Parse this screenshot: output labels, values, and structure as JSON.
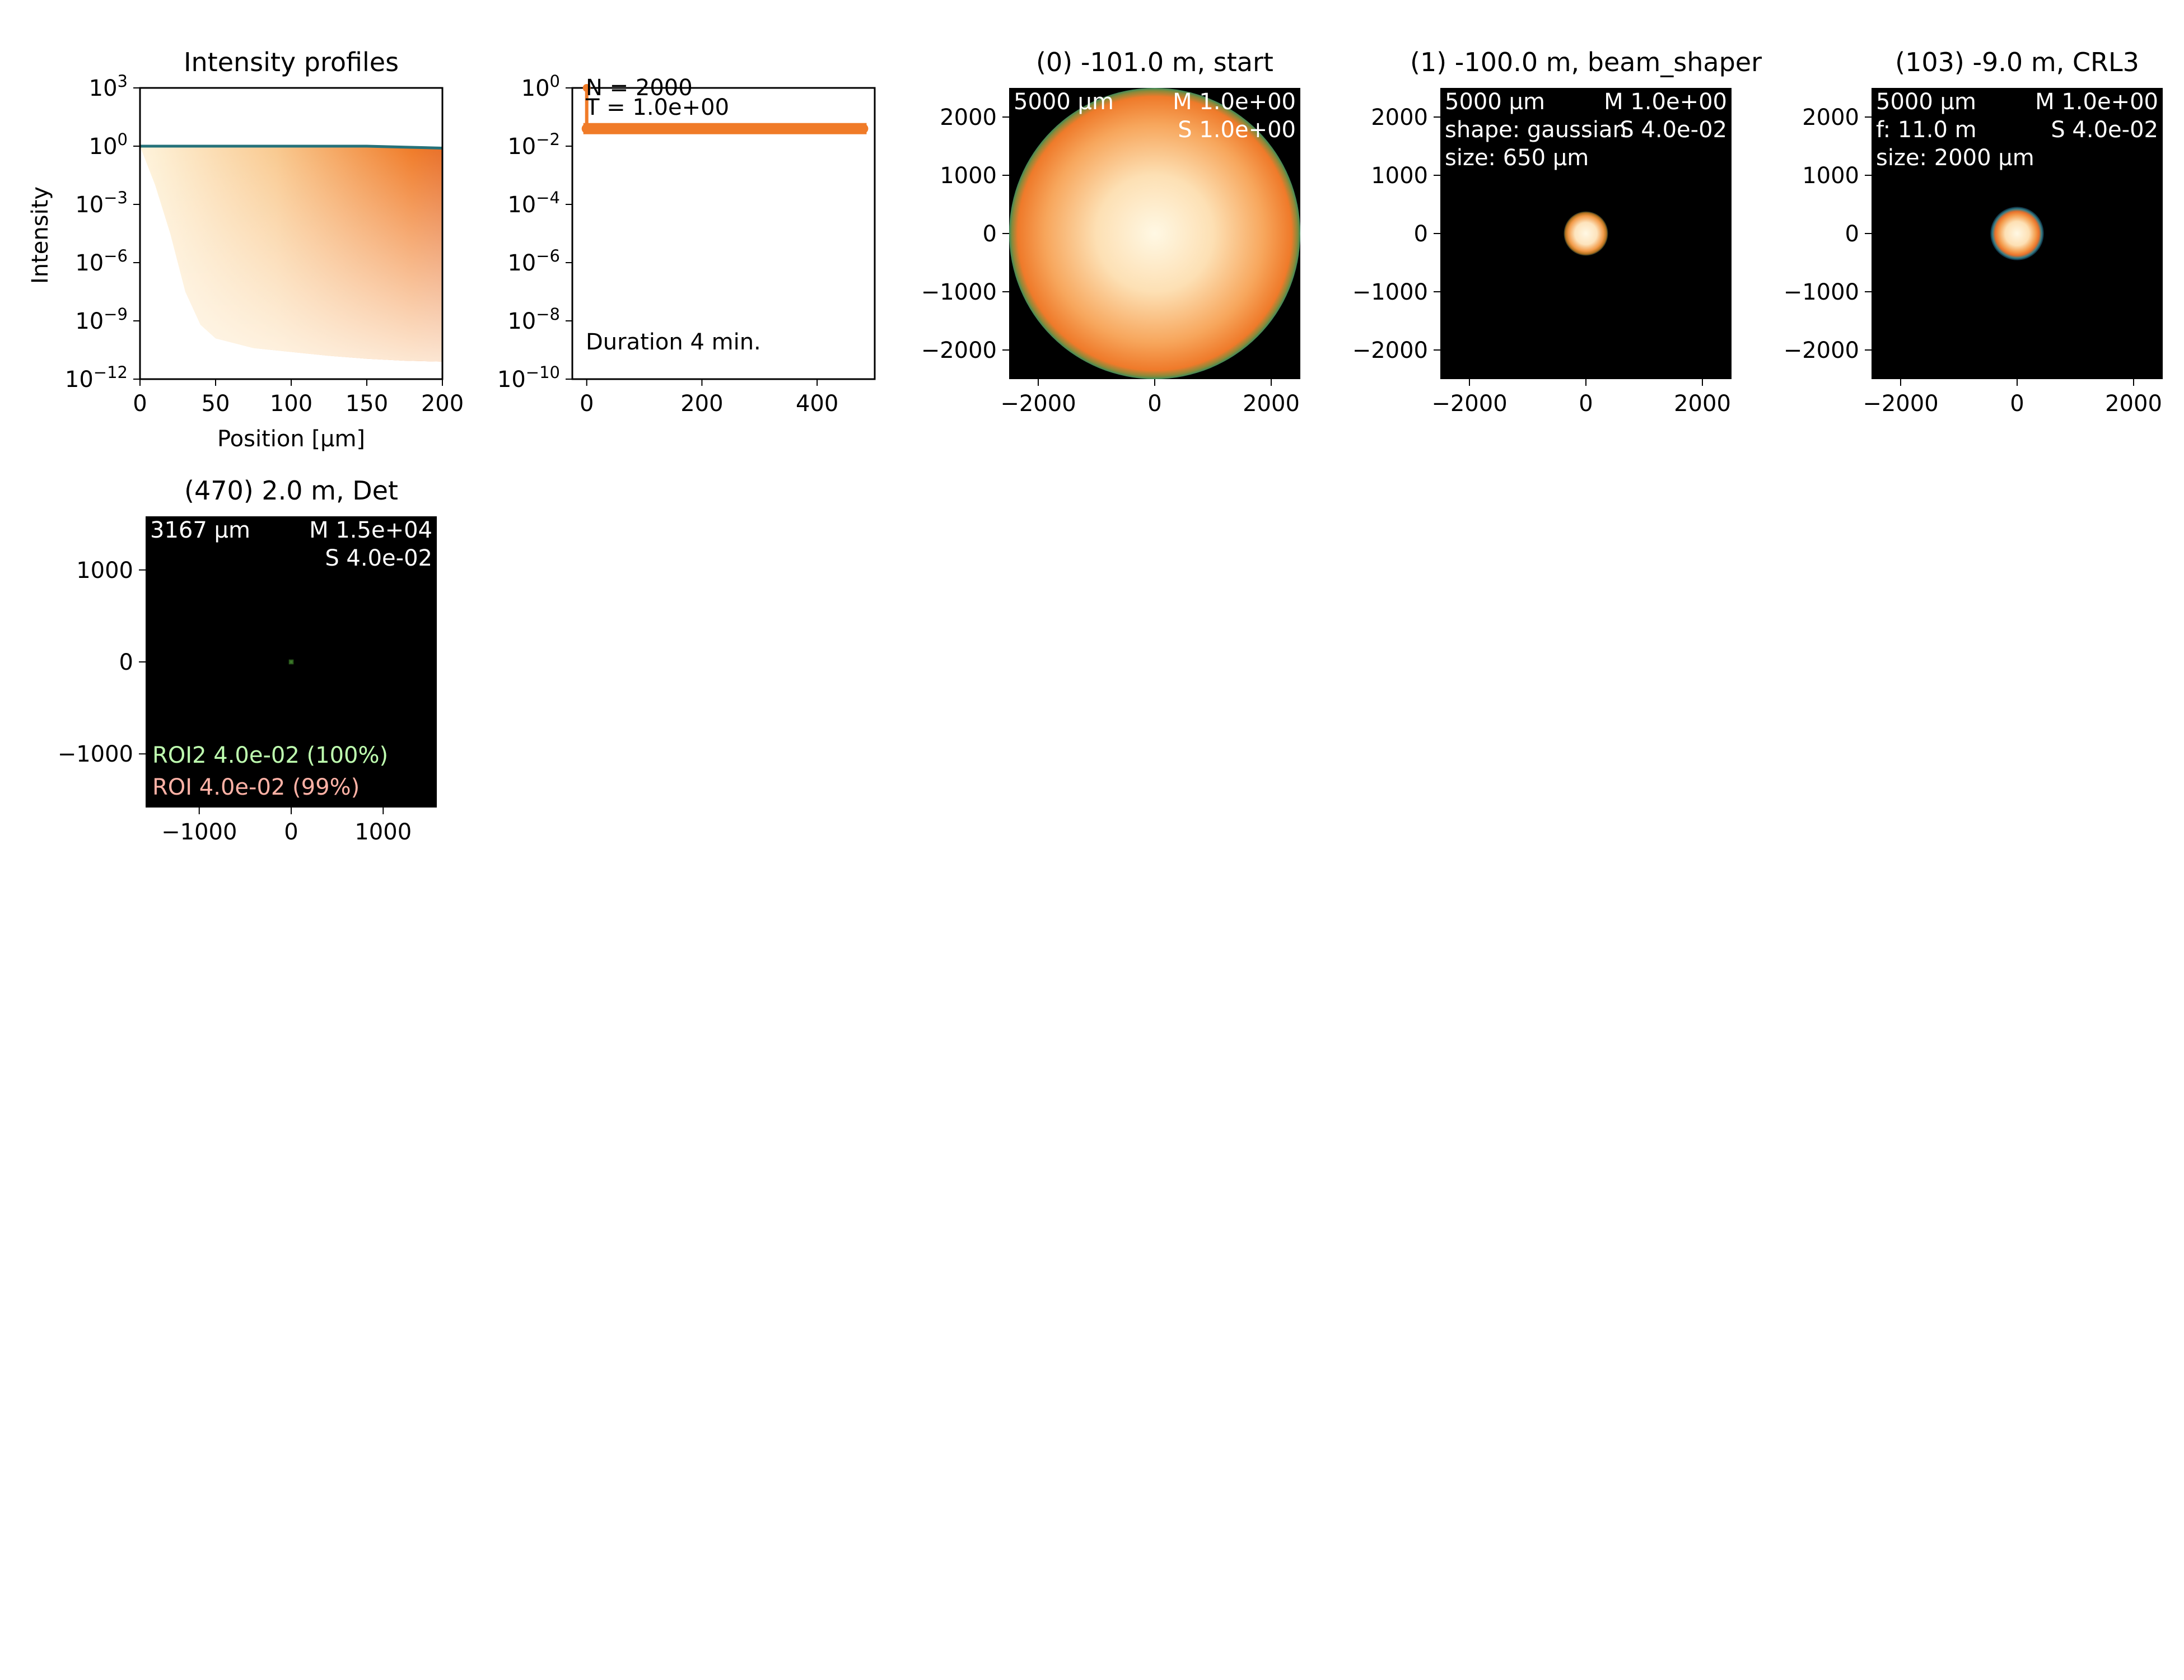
{
  "colors": {
    "orange": "#f07b28",
    "cream": "#fdf1d3",
    "teal": "#25727a",
    "green": "#3c7a2a",
    "roi2_text": "#bfffb0",
    "roi_text": "#ffb2a6",
    "black": "#000000",
    "white": "#ffffff"
  },
  "chart_data": [
    {
      "id": "intensity_profiles",
      "type": "area",
      "title": "Intensity profiles",
      "xlabel": "Position [μm]",
      "ylabel": "Intensity",
      "xlim": [
        0,
        200
      ],
      "ylim_exp": [
        -12,
        3
      ],
      "yscale": "log",
      "x_ticks": [
        "0",
        "50",
        "100",
        "150",
        "200"
      ],
      "y_tick_exponents": [
        "3",
        "0",
        "-3",
        "-6",
        "-9",
        "-12"
      ],
      "profile_envelope": {
        "x": [
          0,
          10,
          20,
          30,
          40,
          50,
          75,
          100,
          125,
          150,
          175,
          200
        ],
        "upper_log10": [
          0,
          0,
          0,
          0,
          0,
          0,
          0,
          0,
          0,
          0,
          -0.05,
          -0.1
        ],
        "lower_log10": [
          0,
          -2,
          -4.5,
          -7.5,
          -9.2,
          -9.9,
          -10.4,
          -10.6,
          -10.8,
          -10.95,
          -11.05,
          -11.1
        ]
      }
    },
    {
      "id": "convergence",
      "type": "line",
      "xlim": [
        -25,
        500
      ],
      "ylim_exp": [
        -10,
        0
      ],
      "yscale": "log",
      "x_ticks": [
        "0",
        "200",
        "400"
      ],
      "y_tick_exponents": [
        "0",
        "-2",
        "-4",
        "-6",
        "-8",
        "-10"
      ],
      "annotations": {
        "n": "N = 2000",
        "t": "T = 1.0e+00",
        "duration": "Duration 4 min."
      },
      "series": [
        {
          "x": [
            0,
            0,
            5,
            470,
            480
          ],
          "y": [
            1.0,
            0.04,
            0.04,
            0.04,
            0.04
          ]
        }
      ]
    },
    {
      "id": "plane0",
      "type": "heatmap",
      "title": "(0) -101.0 m, start",
      "range_um": 2500,
      "x_ticks": [
        "−2000",
        "0",
        "2000"
      ],
      "y_ticks": [
        "2000",
        "1000",
        "0",
        "−1000",
        "−2000"
      ],
      "labels": {
        "size": "5000 μm",
        "m": "M 1.0e+00",
        "s": "S 1.0e+00"
      },
      "beam": {
        "radius_um": 2500
      }
    },
    {
      "id": "plane1",
      "type": "heatmap",
      "title": "(1) -100.0 m, beam_shaper",
      "range_um": 2500,
      "x_ticks": [
        "−2000",
        "0",
        "2000"
      ],
      "y_ticks": [
        "2000",
        "1000",
        "0",
        "−1000",
        "−2000"
      ],
      "labels": {
        "size": "5000 μm",
        "line2": "shape: gaussian",
        "line3": "size: 650 μm",
        "m": "M 1.0e+00",
        "s": "S 4.0e-02"
      },
      "beam": {
        "radius_um": 380
      }
    },
    {
      "id": "plane103",
      "type": "heatmap",
      "title": "(103) -9.0 m, CRL3",
      "range_um": 2500,
      "x_ticks": [
        "−2000",
        "0",
        "2000"
      ],
      "y_ticks": [
        "2000",
        "1000",
        "0",
        "−1000",
        "−2000"
      ],
      "labels": {
        "size": "5000 μm",
        "line2": "f: 11.0 m",
        "line3": "size: 2000 μm",
        "m": "M 1.0e+00",
        "s": "S 4.0e-02"
      },
      "beam": {
        "radius_um": 460
      }
    },
    {
      "id": "plane470",
      "type": "heatmap",
      "title": "(470) 2.0 m, Det",
      "range_um": 1583,
      "x_ticks": [
        "−1000",
        "0",
        "1000"
      ],
      "y_ticks": [
        "1000",
        "0",
        "−1000"
      ],
      "labels": {
        "size": "3167 μm",
        "m": "M 1.5e+04",
        "s": "S 4.0e-02",
        "roi2": "ROI2 4.0e-02 (100%)",
        "roi": "ROI 4.0e-02 (99%)"
      },
      "beam": {
        "radius_um": 40
      }
    }
  ]
}
